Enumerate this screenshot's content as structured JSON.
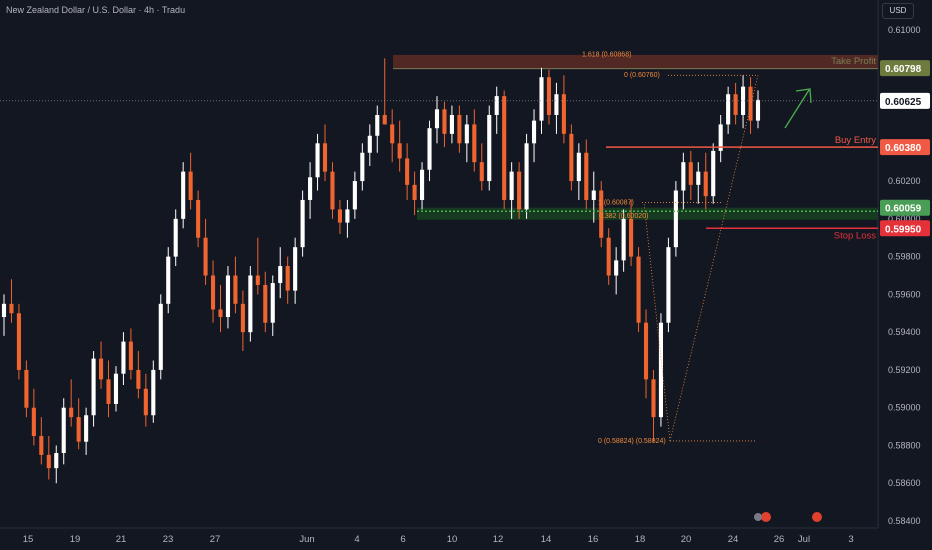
{
  "header": {
    "symbol_title": "New Zealand Dollar / U.S. Dollar · 4h · Tradu",
    "currency": "USD"
  },
  "colors": {
    "background": "#131722",
    "up_candle": "#ffffff",
    "down_candle": "#f0642f",
    "take_profit": "#7a7f52",
    "buy_entry": "#f05a45",
    "support": "#3fa34d",
    "stop_loss": "#e5313a",
    "fib": "#f08a3c",
    "arrow": "#4caf50"
  },
  "chart_data": {
    "type": "candlestick",
    "ylim": [
      0.584,
      0.612
    ],
    "y_ticks": [
      "0.61000",
      "0.60200",
      "0.60000",
      "0.59800",
      "0.59600",
      "0.59400",
      "0.59200",
      "0.59000",
      "0.58800",
      "0.58600",
      "0.58400"
    ],
    "x_ticks": [
      "15",
      "19",
      "21",
      "23",
      "27",
      "Jun",
      "4",
      "6",
      "10",
      "12",
      "14",
      "16",
      "18",
      "20",
      "24",
      "26",
      "Jul",
      "3"
    ],
    "levels": [
      {
        "name": "take-profit",
        "label": "Take Profit",
        "price_label": "0.60798",
        "value": 0.60798
      },
      {
        "name": "current-price",
        "label": "",
        "price_label": "0.60625",
        "value": 0.60625
      },
      {
        "name": "buy-entry",
        "label": "Buy Entry",
        "price_label": "0.60380",
        "value": 0.6038
      },
      {
        "name": "support",
        "label": "",
        "price_label": "0.60059",
        "value": 0.60059
      },
      {
        "name": "stop-loss",
        "label": "Stop Loss",
        "price_label": "0.59950",
        "value": 0.5995
      }
    ],
    "fib_labels": [
      {
        "text": "1.618 (0.60868)",
        "value": 0.60868
      },
      {
        "text": "0 (0.60760)",
        "value": 0.6076
      },
      {
        "text": "1 (0.60087)",
        "value": 0.60087
      },
      {
        "text": "0.382 (0.60020)",
        "value": 0.6002
      },
      {
        "text": "0 (0.58824) (0.58824)",
        "value": 0.58824
      }
    ],
    "ohlc": [
      [
        0.5948,
        0.596,
        0.5938,
        0.5955
      ],
      [
        0.5955,
        0.5968,
        0.5945,
        0.595
      ],
      [
        0.595,
        0.5955,
        0.5915,
        0.592
      ],
      [
        0.592,
        0.5925,
        0.5895,
        0.59
      ],
      [
        0.59,
        0.591,
        0.588,
        0.5885
      ],
      [
        0.5885,
        0.5895,
        0.587,
        0.5875
      ],
      [
        0.5875,
        0.5885,
        0.5862,
        0.5868
      ],
      [
        0.5868,
        0.588,
        0.586,
        0.5876
      ],
      [
        0.5876,
        0.5905,
        0.587,
        0.59
      ],
      [
        0.59,
        0.5915,
        0.589,
        0.5895
      ],
      [
        0.5895,
        0.5905,
        0.5878,
        0.5882
      ],
      [
        0.5882,
        0.59,
        0.5875,
        0.5896
      ],
      [
        0.5896,
        0.593,
        0.589,
        0.5926
      ],
      [
        0.5926,
        0.5935,
        0.591,
        0.5915
      ],
      [
        0.5915,
        0.5925,
        0.5895,
        0.5902
      ],
      [
        0.5902,
        0.5922,
        0.5898,
        0.5918
      ],
      [
        0.5918,
        0.594,
        0.5912,
        0.5935
      ],
      [
        0.5935,
        0.5942,
        0.5915,
        0.592
      ],
      [
        0.592,
        0.593,
        0.5905,
        0.591
      ],
      [
        0.591,
        0.5918,
        0.589,
        0.5896
      ],
      [
        0.5896,
        0.5925,
        0.5892,
        0.592
      ],
      [
        0.592,
        0.596,
        0.5915,
        0.5955
      ],
      [
        0.5955,
        0.5985,
        0.595,
        0.598
      ],
      [
        0.598,
        0.6005,
        0.5975,
        0.6
      ],
      [
        0.6,
        0.603,
        0.5995,
        0.6025
      ],
      [
        0.6025,
        0.6035,
        0.6005,
        0.601
      ],
      [
        0.601,
        0.6015,
        0.5985,
        0.599
      ],
      [
        0.599,
        0.6,
        0.5965,
        0.597
      ],
      [
        0.597,
        0.5978,
        0.5945,
        0.5952
      ],
      [
        0.5952,
        0.5965,
        0.594,
        0.5948
      ],
      [
        0.5948,
        0.5975,
        0.5942,
        0.597
      ],
      [
        0.597,
        0.598,
        0.595,
        0.5955
      ],
      [
        0.5955,
        0.5962,
        0.593,
        0.594
      ],
      [
        0.594,
        0.5975,
        0.5935,
        0.597
      ],
      [
        0.597,
        0.599,
        0.596,
        0.5965
      ],
      [
        0.5965,
        0.5972,
        0.594,
        0.5945
      ],
      [
        0.5945,
        0.597,
        0.5938,
        0.5966
      ],
      [
        0.5966,
        0.5985,
        0.5958,
        0.5975
      ],
      [
        0.5975,
        0.598,
        0.5955,
        0.5962
      ],
      [
        0.5962,
        0.599,
        0.5955,
        0.5985
      ],
      [
        0.5985,
        0.6015,
        0.598,
        0.601
      ],
      [
        0.601,
        0.603,
        0.6,
        0.6022
      ],
      [
        0.6022,
        0.6045,
        0.6015,
        0.604
      ],
      [
        0.604,
        0.605,
        0.602,
        0.6025
      ],
      [
        0.6025,
        0.603,
        0.6,
        0.6005
      ],
      [
        0.6005,
        0.601,
        0.5992,
        0.5998
      ],
      [
        0.5998,
        0.601,
        0.599,
        0.6005
      ],
      [
        0.6005,
        0.6025,
        0.6,
        0.602
      ],
      [
        0.602,
        0.604,
        0.6015,
        0.6035
      ],
      [
        0.6035,
        0.605,
        0.6028,
        0.6044
      ],
      [
        0.6044,
        0.606,
        0.6035,
        0.6055
      ],
      [
        0.6055,
        0.6085,
        0.605,
        0.605
      ],
      [
        0.605,
        0.6058,
        0.603,
        0.604
      ],
      [
        0.604,
        0.6052,
        0.6025,
        0.6032
      ],
      [
        0.6032,
        0.604,
        0.601,
        0.6018
      ],
      [
        0.6018,
        0.6025,
        0.6002,
        0.601
      ],
      [
        0.601,
        0.603,
        0.6005,
        0.6026
      ],
      [
        0.6026,
        0.6052,
        0.602,
        0.6048
      ],
      [
        0.6048,
        0.6065,
        0.604,
        0.6058
      ],
      [
        0.6058,
        0.6062,
        0.6038,
        0.6045
      ],
      [
        0.6045,
        0.606,
        0.604,
        0.6055
      ],
      [
        0.6055,
        0.606,
        0.6035,
        0.604
      ],
      [
        0.604,
        0.6055,
        0.603,
        0.605
      ],
      [
        0.605,
        0.6058,
        0.6025,
        0.603
      ],
      [
        0.603,
        0.604,
        0.6015,
        0.602
      ],
      [
        0.602,
        0.606,
        0.6015,
        0.6055
      ],
      [
        0.6055,
        0.607,
        0.6045,
        0.6065
      ],
      [
        0.6065,
        0.6068,
        0.6005,
        0.601
      ],
      [
        0.601,
        0.603,
        0.6,
        0.6025
      ],
      [
        0.6025,
        0.603,
        0.6,
        0.6005
      ],
      [
        0.6005,
        0.6045,
        0.6,
        0.604
      ],
      [
        0.604,
        0.6058,
        0.603,
        0.6052
      ],
      [
        0.6052,
        0.608,
        0.6045,
        0.6075
      ],
      [
        0.6075,
        0.6079,
        0.605,
        0.6055
      ],
      [
        0.6055,
        0.6072,
        0.6045,
        0.6066
      ],
      [
        0.6066,
        0.6076,
        0.604,
        0.6045
      ],
      [
        0.6045,
        0.605,
        0.6015,
        0.602
      ],
      [
        0.602,
        0.604,
        0.601,
        0.6035
      ],
      [
        0.6035,
        0.6042,
        0.6005,
        0.601
      ],
      [
        0.601,
        0.6025,
        0.5998,
        0.6015
      ],
      [
        0.6015,
        0.602,
        0.5985,
        0.599
      ],
      [
        0.599,
        0.5995,
        0.5965,
        0.597
      ],
      [
        0.597,
        0.5985,
        0.596,
        0.5978
      ],
      [
        0.5978,
        0.6005,
        0.5972,
        0.6
      ],
      [
        0.6,
        0.601,
        0.5975,
        0.598
      ],
      [
        0.598,
        0.5985,
        0.594,
        0.5945
      ],
      [
        0.5945,
        0.5952,
        0.5905,
        0.5915
      ],
      [
        0.5915,
        0.592,
        0.5882,
        0.5895
      ],
      [
        0.5895,
        0.595,
        0.589,
        0.5945
      ],
      [
        0.5945,
        0.599,
        0.594,
        0.5985
      ],
      [
        0.5985,
        0.602,
        0.598,
        0.6015
      ],
      [
        0.6015,
        0.6035,
        0.6005,
        0.603
      ],
      [
        0.603,
        0.6036,
        0.601,
        0.6018
      ],
      [
        0.6018,
        0.603,
        0.6008,
        0.6025
      ],
      [
        0.6025,
        0.6035,
        0.6005,
        0.6012
      ],
      [
        0.6012,
        0.604,
        0.6008,
        0.6036
      ],
      [
        0.6036,
        0.6055,
        0.603,
        0.605
      ],
      [
        0.605,
        0.607,
        0.6045,
        0.6066
      ],
      [
        0.6066,
        0.6072,
        0.605,
        0.6055
      ],
      [
        0.6055,
        0.6076,
        0.6048,
        0.607
      ],
      [
        0.607,
        0.6075,
        0.6045,
        0.6052
      ],
      [
        0.6052,
        0.6068,
        0.6048,
        0.6063
      ]
    ]
  }
}
